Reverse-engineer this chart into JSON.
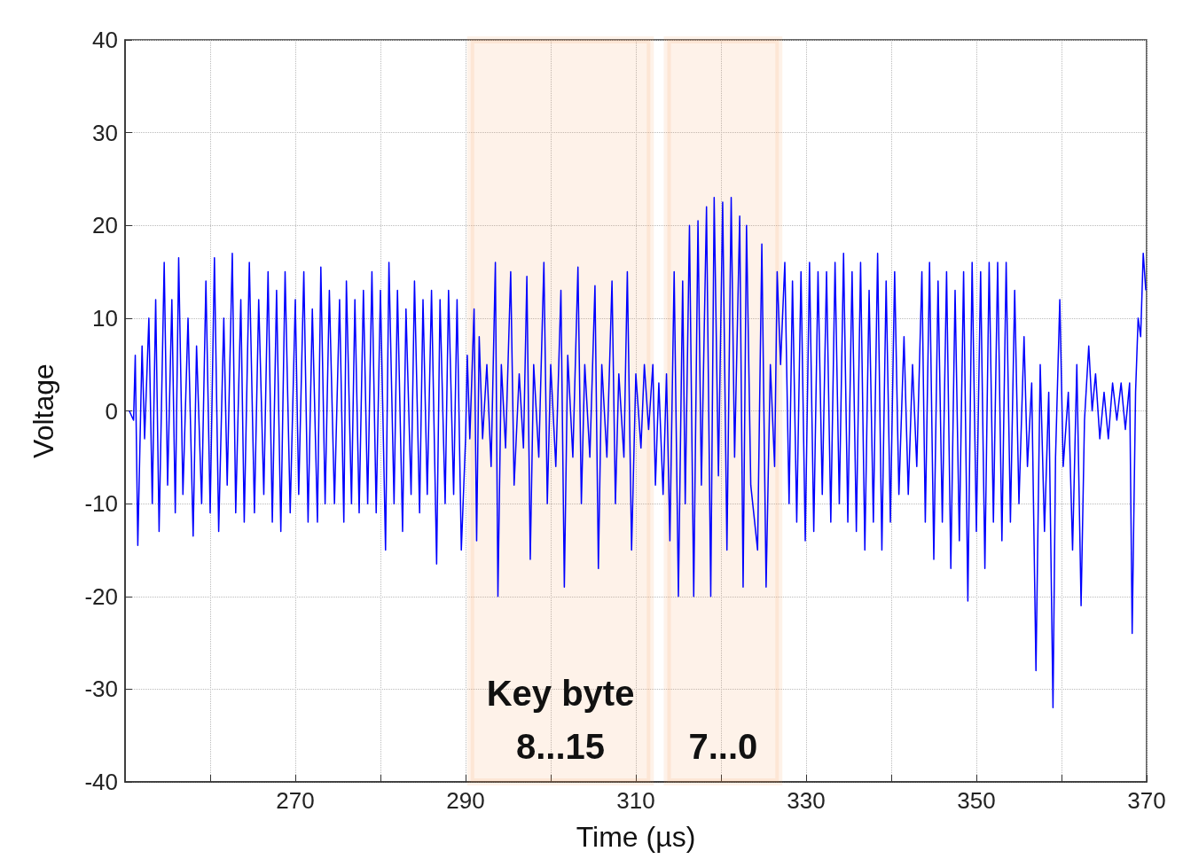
{
  "chart_data": {
    "type": "line",
    "xlabel": "Time (µs)",
    "ylabel": "Voltage",
    "xlim": [
      250,
      370
    ],
    "xticks": [
      {
        "value": 260,
        "label": null
      },
      270,
      {
        "value": 280,
        "label": null
      },
      290,
      {
        "value": 300,
        "label": null
      },
      310,
      {
        "value": 320,
        "label": null
      },
      330,
      {
        "value": 340,
        "label": null
      },
      350,
      {
        "value": 360,
        "label": null
      },
      370
    ],
    "ylim": [
      -40,
      40
    ],
    "yticks": [
      -40,
      -30,
      -20,
      -10,
      0,
      10,
      20,
      30,
      40
    ],
    "grid": true,
    "marker": "none",
    "line_style": "solid",
    "bands": [
      {
        "axis": "x",
        "from": 290.6,
        "to": 311.7,
        "label": "Key byte\n8...15",
        "color": "#f79646"
      },
      {
        "axis": "x",
        "from": 313.7,
        "to": 326.8,
        "label": "7...0",
        "color": "#f79646"
      }
    ],
    "series": [
      {
        "color": "#0000ff",
        "x": [
          250.5,
          251,
          251.2,
          251.5,
          252,
          252.3,
          252.8,
          253.2,
          253.6,
          254,
          254.6,
          255,
          255.5,
          255.9,
          256.3,
          256.8,
          257.4,
          258,
          258.4,
          259,
          259.5,
          260,
          260.5,
          261,
          261.6,
          262,
          262.6,
          263,
          263.6,
          264,
          264.6,
          265.2,
          265.7,
          266.3,
          266.8,
          267.3,
          267.8,
          268.3,
          268.8,
          269.4,
          270,
          270.4,
          271,
          271.5,
          272,
          272.6,
          273,
          273.5,
          274,
          274.6,
          275.2,
          275.7,
          276,
          276.6,
          277,
          277.5,
          278,
          278.5,
          279,
          279.5,
          280,
          280.6,
          281,
          281.6,
          282,
          282.6,
          283,
          283.6,
          284,
          284.6,
          285,
          285.5,
          286,
          286.6,
          287,
          287.6,
          288,
          288.6,
          289,
          289.5,
          290,
          290.2,
          290.5,
          291,
          291.3,
          291.6,
          292,
          292.5,
          293,
          293.5,
          293.8,
          294.2,
          294.7,
          295.3,
          295.7,
          296.3,
          296.8,
          297.2,
          297.6,
          298,
          298.6,
          299.2,
          299.6,
          300,
          300.6,
          301.2,
          301.6,
          302,
          302.6,
          303.2,
          303.6,
          304,
          304.6,
          305.2,
          305.6,
          306,
          306.6,
          307.2,
          307.6,
          308,
          308.6,
          309,
          309.5,
          310,
          310.6,
          311,
          311.5,
          312,
          312.3,
          312.7,
          313.2,
          313.6,
          314,
          314.5,
          315,
          315.5,
          315.8,
          316.3,
          316.8,
          317.3,
          317.7,
          318.3,
          318.8,
          319.2,
          319.7,
          320.2,
          320.7,
          321.2,
          321.6,
          322.2,
          322.6,
          323,
          323.5,
          324.3,
          324.8,
          325.3,
          325.8,
          326.3,
          326.6,
          327,
          327.5,
          328,
          328.4,
          328.9,
          329.4,
          329.9,
          330.4,
          330.9,
          331.4,
          331.9,
          332.4,
          332.9,
          333.4,
          333.9,
          334.4,
          334.9,
          335.4,
          335.9,
          336.4,
          336.9,
          337.4,
          337.9,
          338.4,
          338.9,
          339.4,
          339.9,
          340.4,
          340.9,
          341.5,
          342,
          342.5,
          343,
          343.6,
          344,
          344.5,
          345,
          345.5,
          346,
          346.5,
          347,
          347.5,
          348,
          348.5,
          349,
          349.5,
          350,
          350.5,
          351,
          351.5,
          352,
          352.5,
          353,
          353.5,
          354,
          354.5,
          355,
          355.6,
          356,
          356.5,
          357,
          357.5,
          358,
          358.5,
          359,
          359.3,
          359.8,
          360.2,
          360.8,
          361.3,
          361.8,
          362.3,
          362.7,
          363.2,
          363.6,
          364,
          364.5,
          365,
          365.5,
          366,
          366.5,
          367,
          367.5,
          368,
          368.3,
          368.7,
          369,
          369.3,
          369.6,
          369.9
        ],
        "values": [
          0,
          -1,
          6,
          -14.5,
          7,
          -3,
          10,
          -10,
          12,
          -13,
          16,
          -8,
          12,
          -11,
          16.5,
          -9,
          10,
          -13.5,
          7,
          -10,
          14,
          -11,
          16.5,
          -13,
          10,
          -8,
          17,
          -11,
          12,
          -12,
          16,
          -11,
          12,
          -9,
          15,
          -12,
          13,
          -13,
          15,
          -11,
          12,
          -9,
          15,
          -12,
          11,
          -12,
          15.5,
          -10,
          13,
          -10,
          12,
          -12,
          14,
          -10,
          12,
          -11,
          13,
          -10,
          15,
          -11,
          13,
          -15,
          16,
          -10,
          13,
          -13,
          11,
          -9,
          14,
          -11,
          12,
          -9,
          13,
          -16.5,
          12,
          -10,
          13,
          -9,
          12,
          -15,
          -3,
          6,
          -3,
          11,
          -14,
          8,
          -3,
          5,
          -6,
          16,
          -20,
          5,
          -4,
          15,
          -8,
          4,
          -4,
          14.5,
          -16,
          5,
          -5,
          16,
          -10,
          5,
          -6,
          13,
          -19,
          6,
          -5,
          15.5,
          -10,
          5,
          -5,
          13.5,
          -17,
          5,
          -5,
          14,
          -10,
          4,
          -5,
          15,
          -15,
          4,
          -4,
          5,
          -2,
          5,
          -8,
          3,
          -9,
          4,
          -14,
          15,
          -20,
          14,
          -10,
          20,
          -20,
          20.5,
          -8,
          22,
          -20,
          23,
          -7,
          22.5,
          -15,
          23,
          -5,
          21,
          -19,
          20,
          -8,
          -15,
          18,
          -19,
          5,
          -6,
          15,
          5,
          16,
          -10,
          14,
          -12,
          15,
          -14,
          16,
          -13,
          15,
          -9,
          15,
          -12,
          16,
          -10,
          17,
          -12,
          15,
          -13,
          16,
          -15,
          13,
          -12,
          17,
          -15,
          14,
          -12,
          15,
          -9,
          8,
          -9,
          5,
          -6,
          15,
          -12,
          16,
          -16,
          14,
          -12,
          15,
          -17,
          13,
          -14,
          15,
          -20.5,
          16,
          -13,
          15,
          -17,
          16,
          -12,
          16,
          -14,
          16,
          -12,
          13,
          -10,
          8,
          -6,
          3,
          -28,
          5,
          -13,
          2,
          -32,
          -5,
          12,
          -6,
          2,
          -15,
          5,
          -21,
          -1,
          7,
          0,
          4,
          -3,
          2,
          -3,
          3,
          -1,
          3,
          -2,
          3,
          -24,
          2,
          10,
          8,
          17,
          13
        ]
      }
    ]
  }
}
